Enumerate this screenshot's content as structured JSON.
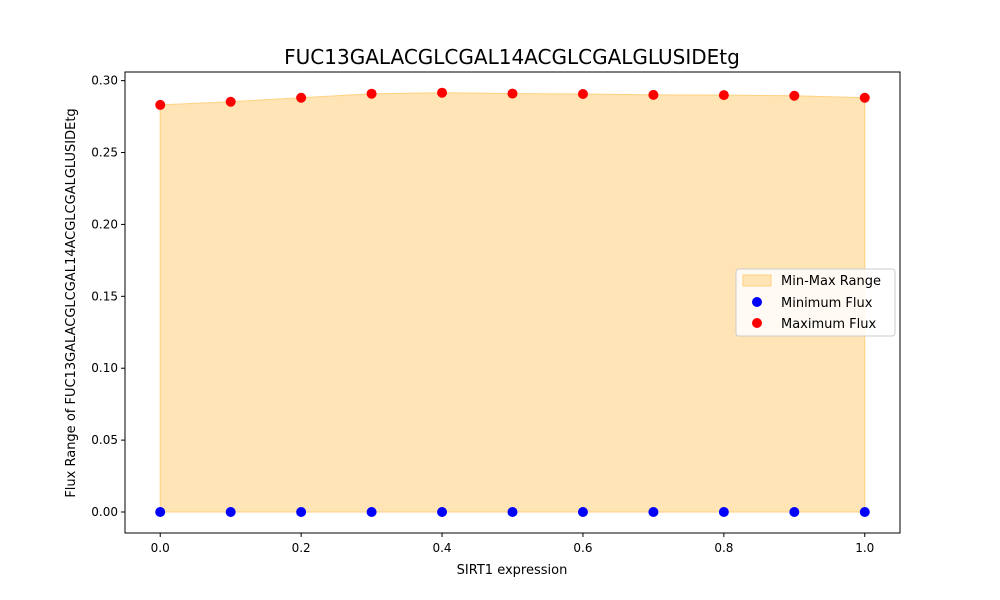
{
  "chart_data": {
    "type": "area",
    "title": "FUC13GALACGLCGAL14ACGLCGALGLUSIDEtg",
    "xlabel": "SIRT1 expression",
    "ylabel": "Flux Range of FUC13GALACGLCGAL14ACGLCGALGLUSIDEtg",
    "x": [
      0.0,
      0.1,
      0.2,
      0.3,
      0.4,
      0.5,
      0.6,
      0.7,
      0.8,
      0.9,
      1.0
    ],
    "xlim": [
      -0.05,
      1.05
    ],
    "ylim": [
      -0.0146,
      0.306
    ],
    "xticks": [
      0.0,
      0.2,
      0.4,
      0.6,
      0.8,
      1.0
    ],
    "xtick_labels": [
      "0.0",
      "0.2",
      "0.4",
      "0.6",
      "0.8",
      "1.0"
    ],
    "yticks": [
      0.0,
      0.05,
      0.1,
      0.15,
      0.2,
      0.25,
      0.3
    ],
    "ytick_labels": [
      "0.00",
      "0.05",
      "0.10",
      "0.15",
      "0.20",
      "0.25",
      "0.30"
    ],
    "grid": false,
    "legend_position": "center-right",
    "series": [
      {
        "name": "Minimum Flux",
        "kind": "scatter",
        "color": "#0000ff",
        "values": [
          0.0,
          0.0,
          0.0,
          0.0,
          0.0,
          0.0,
          0.0,
          0.0,
          0.0,
          0.0,
          0.0
        ]
      },
      {
        "name": "Maximum Flux",
        "kind": "scatter",
        "color": "#ff0000",
        "values": [
          0.2831,
          0.2853,
          0.2881,
          0.2909,
          0.2916,
          0.291,
          0.2907,
          0.2901,
          0.2899,
          0.2895,
          0.2881
        ]
      }
    ],
    "fill": {
      "name": "Min-Max Range",
      "color": "#ffe4b5",
      "edge_color": "#ffd280"
    }
  }
}
